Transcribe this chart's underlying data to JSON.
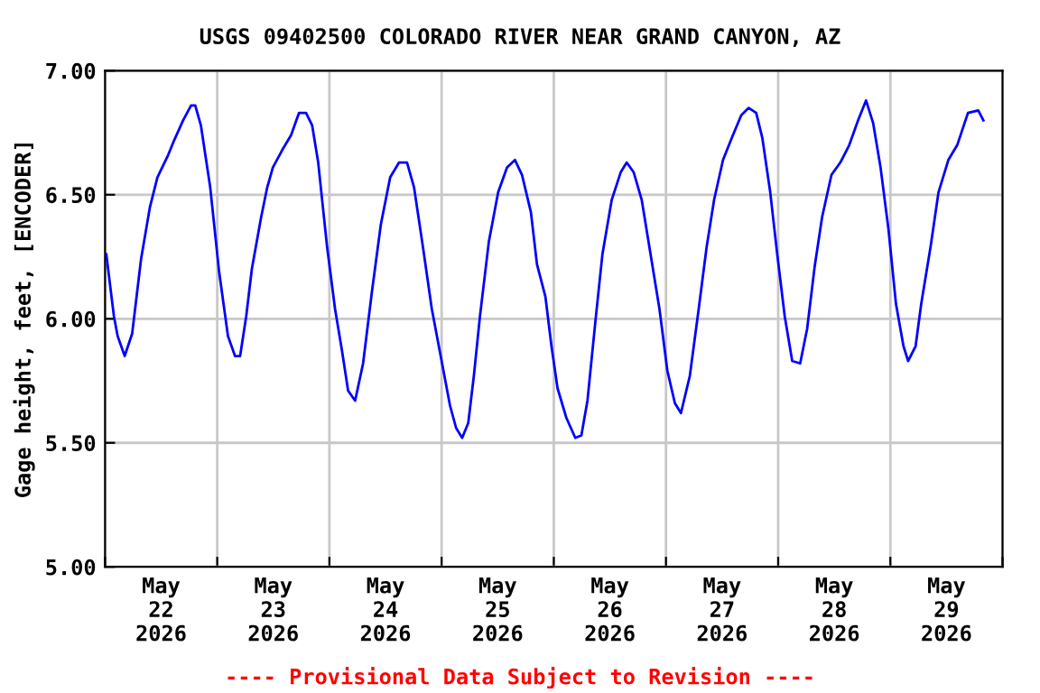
{
  "chart_data": {
    "type": "line",
    "title": "USGS 09402500 COLORADO RIVER NEAR GRAND CANYON, AZ",
    "ylabel": "Gage height, feet, [ENCODER]",
    "annotations": [
      "---- Provisional Data Subject to Revision ----"
    ],
    "grid": true,
    "legend": false,
    "marker": "none",
    "line_style": "solid",
    "xlim": [
      "2026-05-22T00:00",
      "2026-05-30T00:00"
    ],
    "xticks": [
      {
        "value": "2026-05-22T00:00",
        "label": null
      },
      {
        "value": "2026-05-22T12:00",
        "label": "May\n22\n2026"
      },
      {
        "value": "2026-05-23T00:00",
        "label": null
      },
      {
        "value": "2026-05-23T12:00",
        "label": "May\n23\n2026"
      },
      {
        "value": "2026-05-24T00:00",
        "label": null
      },
      {
        "value": "2026-05-24T12:00",
        "label": "May\n24\n2026"
      },
      {
        "value": "2026-05-25T00:00",
        "label": null
      },
      {
        "value": "2026-05-25T12:00",
        "label": "May\n25\n2026"
      },
      {
        "value": "2026-05-26T00:00",
        "label": null
      },
      {
        "value": "2026-05-26T12:00",
        "label": "May\n26\n2026"
      },
      {
        "value": "2026-05-27T00:00",
        "label": null
      },
      {
        "value": "2026-05-27T12:00",
        "label": "May\n27\n2026"
      },
      {
        "value": "2026-05-28T00:00",
        "label": null
      },
      {
        "value": "2026-05-28T12:00",
        "label": "May\n28\n2026"
      },
      {
        "value": "2026-05-29T00:00",
        "label": null
      },
      {
        "value": "2026-05-29T12:00",
        "label": "May\n29\n2026"
      },
      {
        "value": "2026-05-30T00:00",
        "label": null
      }
    ],
    "ylim": [
      5.0,
      7.0
    ],
    "yticks": [
      {
        "value": 5.0,
        "label": "5.00"
      },
      {
        "value": 5.5,
        "label": "5.50"
      },
      {
        "value": 6.0,
        "label": "6.00"
      },
      {
        "value": 6.5,
        "label": "6.50"
      },
      {
        "value": 7.0,
        "label": "7.00"
      }
    ],
    "series": [
      {
        "color": "#0000ff",
        "x": [
          "2026-05-22T00:16",
          "2026-05-22T01:54",
          "2026-05-22T02:42",
          "2026-05-22T04:12",
          "2026-05-22T05:48",
          "2026-05-22T07:42",
          "2026-05-22T09:36",
          "2026-05-22T11:12",
          "2026-05-22T13:30",
          "2026-05-22T14:48",
          "2026-05-22T16:42",
          "2026-05-22T18:24",
          "2026-05-22T19:18",
          "2026-05-22T20:30",
          "2026-05-22T22:30",
          "2026-05-23T00:24",
          "2026-05-23T02:18",
          "2026-05-23T03:48",
          "2026-05-23T04:54",
          "2026-05-23T06:12",
          "2026-05-23T07:24",
          "2026-05-23T09:24",
          "2026-05-23T10:42",
          "2026-05-23T11:54",
          "2026-05-23T13:54",
          "2026-05-23T15:48",
          "2026-05-23T17:30",
          "2026-05-23T19:00",
          "2026-05-23T20:18",
          "2026-05-23T21:36",
          "2026-05-23T23:30",
          "2026-05-24T01:12",
          "2026-05-24T02:42",
          "2026-05-24T04:00",
          "2026-05-24T05:30",
          "2026-05-24T07:12",
          "2026-05-24T09:06",
          "2026-05-24T11:00",
          "2026-05-24T13:00",
          "2026-05-24T14:54",
          "2026-05-24T16:36",
          "2026-05-24T18:06",
          "2026-05-24T20:00",
          "2026-05-24T21:54",
          "2026-05-24T23:54",
          "2026-05-25T01:48",
          "2026-05-25T03:06",
          "2026-05-25T04:24",
          "2026-05-25T05:42",
          "2026-05-25T06:54",
          "2026-05-25T08:12",
          "2026-05-25T10:06",
          "2026-05-25T12:06",
          "2026-05-25T14:00",
          "2026-05-25T15:42",
          "2026-05-25T17:12",
          "2026-05-25T19:06",
          "2026-05-25T20:24",
          "2026-05-25T22:12",
          "2026-05-25T23:30",
          "2026-05-26T00:48",
          "2026-05-26T02:42",
          "2026-05-26T04:36",
          "2026-05-26T05:54",
          "2026-05-26T07:12",
          "2026-05-26T08:54",
          "2026-05-26T10:24",
          "2026-05-26T12:24",
          "2026-05-26T14:18",
          "2026-05-26T15:36",
          "2026-05-26T17:06",
          "2026-05-26T18:48",
          "2026-05-26T20:42",
          "2026-05-26T22:36",
          "2026-05-27T00:18",
          "2026-05-27T01:54",
          "2026-05-27T03:12",
          "2026-05-27T05:06",
          "2026-05-27T07:00",
          "2026-05-27T08:42",
          "2026-05-27T10:18",
          "2026-05-27T12:12",
          "2026-05-27T14:06",
          "2026-05-27T16:06",
          "2026-05-27T17:42",
          "2026-05-27T19:18",
          "2026-05-27T20:36",
          "2026-05-27T22:18",
          "2026-05-27T23:48",
          "2026-05-28T01:24",
          "2026-05-28T03:00",
          "2026-05-28T04:42",
          "2026-05-28T06:12",
          "2026-05-28T07:48",
          "2026-05-28T09:24",
          "2026-05-28T11:24",
          "2026-05-28T13:18",
          "2026-05-28T15:12",
          "2026-05-28T17:06",
          "2026-05-28T18:48",
          "2026-05-28T20:18",
          "2026-05-28T21:54",
          "2026-05-28T23:36",
          "2026-05-29T01:12",
          "2026-05-29T02:48",
          "2026-05-29T03:48",
          "2026-05-29T05:24",
          "2026-05-29T06:36",
          "2026-05-29T08:36",
          "2026-05-29T10:18",
          "2026-05-29T12:24",
          "2026-05-29T14:18",
          "2026-05-29T16:36",
          "2026-05-29T18:48",
          "2026-05-29T19:54"
        ],
        "values": [
          6.26,
          6.01,
          5.93,
          5.85,
          5.94,
          6.24,
          6.45,
          6.57,
          6.66,
          6.72,
          6.8,
          6.86,
          6.86,
          6.78,
          6.53,
          6.19,
          5.93,
          5.85,
          5.85,
          6.01,
          6.2,
          6.41,
          6.53,
          6.61,
          6.68,
          6.74,
          6.83,
          6.83,
          6.78,
          6.63,
          6.29,
          6.04,
          5.87,
          5.71,
          5.67,
          5.82,
          6.11,
          6.38,
          6.57,
          6.63,
          6.63,
          6.53,
          6.29,
          6.04,
          5.84,
          5.65,
          5.56,
          5.52,
          5.58,
          5.77,
          6.01,
          6.31,
          6.51,
          6.61,
          6.64,
          6.58,
          6.43,
          6.22,
          6.09,
          5.89,
          5.72,
          5.6,
          5.52,
          5.53,
          5.67,
          5.99,
          6.26,
          6.48,
          6.59,
          6.63,
          6.59,
          6.48,
          6.26,
          6.04,
          5.79,
          5.66,
          5.62,
          5.77,
          6.04,
          6.29,
          6.48,
          6.64,
          6.73,
          6.82,
          6.85,
          6.83,
          6.73,
          6.51,
          6.26,
          6.01,
          5.83,
          5.82,
          5.96,
          6.21,
          6.41,
          6.58,
          6.63,
          6.7,
          6.8,
          6.88,
          6.79,
          6.61,
          6.36,
          6.06,
          5.89,
          5.83,
          5.89,
          6.06,
          6.29,
          6.51,
          6.64,
          6.7,
          6.83,
          6.84,
          6.8
        ]
      }
    ]
  }
}
